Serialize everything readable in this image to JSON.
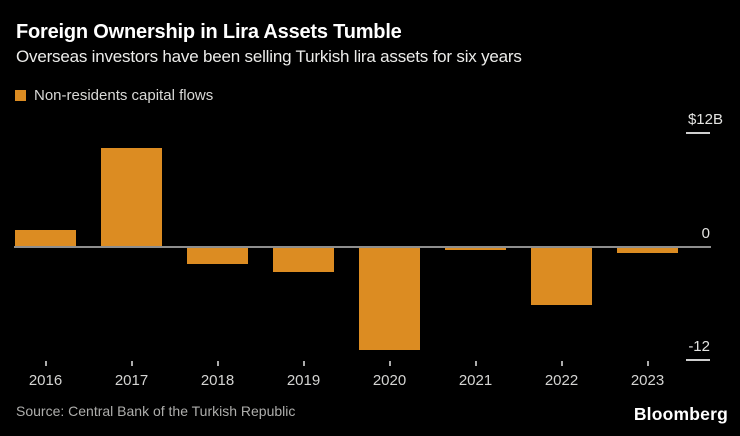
{
  "header": {
    "title": "Foreign Ownership in Lira Assets Tumble",
    "subtitle": "Overseas investors have been selling Turkish lira assets for six years"
  },
  "legend": {
    "label": "Non-residents capital flows",
    "swatch_color": "#DC8C22"
  },
  "chart_data": {
    "type": "bar",
    "title": "Foreign Ownership in Lira Assets Tumble",
    "series_name": "Non-residents capital flows",
    "unit": "$B",
    "categories": [
      "2016",
      "2017",
      "2018",
      "2019",
      "2020",
      "2021",
      "2022",
      "2023"
    ],
    "values": [
      1.8,
      10.5,
      -1.9,
      -2.7,
      -11.0,
      -0.4,
      -6.2,
      -0.7
    ],
    "y_ticks": [
      {
        "label": "$12B",
        "value": 12
      },
      {
        "label": "0",
        "value": 0
      },
      {
        "label": "-12",
        "value": -12
      }
    ],
    "ylim": [
      -13,
      13
    ],
    "bar_color": "#DC8C22",
    "grid": "zero-line-only",
    "legend_position": "top-left"
  },
  "footer": {
    "source": "Source: Central Bank of the Turkish Republic",
    "brand": "Bloomberg"
  },
  "colors": {
    "background": "#000000",
    "bar": "#DC8C22",
    "zero_line": "#8E8E8E",
    "tick_line": "#CFCFCF",
    "axis_text": "#E4E4E2"
  }
}
